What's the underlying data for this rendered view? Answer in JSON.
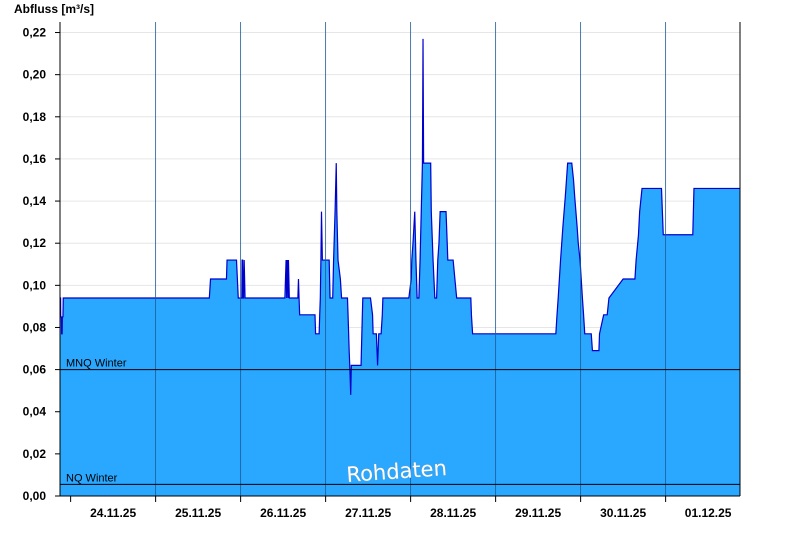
{
  "chart_data": {
    "type": "area",
    "ylabel": "Abfluss [m³/s]",
    "ylim": [
      0,
      0.225
    ],
    "yticks": [
      0.0,
      0.02,
      0.04,
      0.06,
      0.08,
      0.1,
      0.12,
      0.14,
      0.16,
      0.18,
      0.2,
      0.22
    ],
    "ytick_labels": [
      "0,00",
      "0,02",
      "0,04",
      "0,06",
      "0,08",
      "0,10",
      "0,12",
      "0,14",
      "0,16",
      "0,18",
      "0,20",
      "0,22"
    ],
    "xlim": [
      "23.11.25 21:00",
      "01.12.25 21:00"
    ],
    "xtick_labels": [
      "24.11.25",
      "25.11.25",
      "26.11.25",
      "27.11.25",
      "28.11.25",
      "29.11.25",
      "30.11.25",
      "01.12.25"
    ],
    "reference_lines": [
      {
        "label": "MNQ Winter",
        "value": 0.06
      },
      {
        "label": "NQ Winter",
        "value": 0.0055
      }
    ],
    "fill_color": "#2aa7fe",
    "line_color": "#0000cc",
    "grid": "horizontal",
    "watermark": "Rohdaten",
    "series": [
      {
        "x": [
          "23.11.25 21:00",
          "23.11.25 21:10",
          "23.11.25 21:12",
          "23.11.25 21:24",
          "23.11.25 21:27",
          "23.11.25 21:36",
          "23.11.25 21:40",
          "23.11.25 21:50",
          "23.11.25 21:55",
          "23.11.25 22:10",
          "25.11.25 15:10",
          "25.11.25 15:30",
          "25.11.25 20:00",
          "25.11.25 20:10",
          "25.11.25 20:30",
          "25.11.25 20:50",
          "25.11.25 22:50",
          "25.11.25 23:05",
          "25.11.25 23:20",
          "26.11.25 00:20",
          "26.11.25 00:25",
          "26.11.25 00:35",
          "26.11.25 00:40",
          "26.11.25 00:50",
          "26.11.25 01:00",
          "26.11.25 01:15",
          "26.11.25 12:30",
          "26.11.25 12:40",
          "26.11.25 12:50",
          "26.11.25 13:00",
          "26.11.25 13:10",
          "26.11.25 13:25",
          "26.11.25 13:30",
          "26.11.25 13:45",
          "26.11.25 16:10",
          "26.11.25 16:20",
          "26.11.25 16:30",
          "26.11.25 16:40",
          "26.11.25 21:00",
          "26.11.25 21:10",
          "26.11.25 21:30",
          "26.11.25 22:10",
          "26.11.25 22:20",
          "26.11.25 22:30",
          "26.11.25 22:40",
          "26.11.25 22:50",
          "26.11.25 23:05",
          "27.11.25 01:00",
          "27.11.25 01:15",
          "27.11.25 01:45",
          "27.11.25 02:00",
          "27.11.25 02:15",
          "27.11.25 02:40",
          "27.11.25 03:00",
          "27.11.25 03:10",
          "27.11.25 03:30",
          "27.11.25 04:10",
          "27.11.25 04:30",
          "27.11.25 06:00",
          "27.11.25 06:10",
          "27.11.25 06:20",
          "27.11.25 06:30",
          "27.11.25 06:40",
          "27.11.25 06:50",
          "27.11.25 07:05",
          "27.11.25 07:15",
          "27.11.25 10:00",
          "27.11.25 10:10",
          "27.11.25 10:20",
          "27.11.25 10:30",
          "27.11.25 10:40",
          "27.11.25 10:50",
          "27.11.25 11:00",
          "27.11.25 11:10",
          "27.11.25 12:20",
          "27.11.25 12:40",
          "27.11.25 13:15",
          "27.11.25 13:25",
          "27.11.25 14:00",
          "27.11.25 14:20",
          "27.11.25 14:40",
          "27.11.25 15:00",
          "27.11.25 15:15",
          "27.11.25 15:25",
          "27.11.25 15:40",
          "27.11.25 16:00",
          "27.11.25 16:10",
          "27.11.25 16:15",
          "27.11.25 16:20",
          "27.11.25 16:40",
          "27.11.25 17:00",
          "27.11.25 17:30",
          "27.11.25 18:00",
          "27.11.25 19:00",
          "27.11.25 19:20",
          "27.11.25 20:10",
          "27.11.25 20:20",
          "27.11.25 23:10",
          "27.11.25 23:30",
          "28.11.25 00:10",
          "28.11.25 00:20",
          "28.11.25 00:40",
          "28.11.25 01:10",
          "28.11.25 01:30",
          "28.11.25 01:50",
          "28.11.25 02:00",
          "28.11.25 02:10",
          "28.11.25 02:20",
          "28.11.25 02:40",
          "28.11.25 03:00",
          "28.11.25 03:20",
          "28.11.25 03:30",
          "28.11.25 03:40",
          "28.11.25 05:40",
          "28.11.25 05:50",
          "28.11.25 06:20",
          "28.11.25 06:50",
          "28.11.25 07:00",
          "28.11.25 07:20",
          "28.11.25 07:30",
          "28.11.25 07:40",
          "28.11.25 08:00",
          "28.11.25 08:20",
          "28.11.25 08:30",
          "28.11.25 08:40",
          "28.11.25 09:50",
          "28.11.25 10:00",
          "28.11.25 10:20",
          "28.11.25 10:30",
          "28.11.25 11:00",
          "28.11.25 11:20",
          "28.11.25 11:40",
          "28.11.25 12:00",
          "28.11.25 12:30",
          "28.11.25 13:00",
          "28.11.25 13:20",
          "28.11.25 13:30",
          "28.11.25 17:00",
          "28.11.25 17:10",
          "28.11.25 17:30",
          "28.11.25 17:40",
          "28.11.25 18:00",
          "28.11.25 18:20",
          "28.11.25 18:40",
          "28.11.25 19:20",
          "28.11.25 19:30",
          "28.11.25 19:40",
          "28.11.25 22:20",
          "28.11.25 22:40",
          "28.11.25 23:00",
          "28.11.25 23:20",
          "28.11.25 23:40",
          "29.11.25 00:00",
          "29.11.25 00:20",
          "29.11.25 00:40",
          "29.11.25 01:30",
          "29.11.25 10:40",
          "29.11.25 10:50",
          "29.11.25 11:10",
          "29.11.25 11:20",
          "29.11.25 11:40",
          "29.11.25 12:00",
          "29.11.25 12:20",
          "29.11.25 12:40",
          "29.11.25 13:00",
          "29.11.25 13:30",
          "29.11.25 14:00",
          "29.11.25 14:20",
          "29.11.25 14:40",
          "29.11.25 15:00",
          "29.11.25 17:00",
          "29.11.25 17:20",
          "29.11.25 17:40",
          "29.11.25 18:00",
          "29.11.25 18:20",
          "29.11.25 18:40",
          "29.11.25 19:00",
          "29.11.25 19:20",
          "29.11.25 19:40",
          "29.11.25 20:00",
          "29.11.25 20:20",
          "29.11.25 20:40",
          "29.11.25 21:00",
          "29.11.25 21:30",
          "29.11.25 22:00",
          "29.11.25 22:20",
          "29.11.25 22:40",
          "29.11.25 23:00",
          "29.11.25 23:20",
          "29.11.25 23:50",
          "30.11.25 00:10",
          "30.11.25 00:30",
          "30.11.25 00:50",
          "30.11.25 01:10",
          "30.11.25 03:00",
          "30.11.25 03:20",
          "30.11.25 04:00",
          "30.11.25 04:20",
          "30.11.25 05:10",
          "30.11.25 05:20",
          "30.11.25 06:30",
          "30.11.25 06:50",
          "30.11.25 07:30",
          "30.11.25 08:00",
          "30.11.25 12:00",
          "30.11.25 12:20",
          "30.11.25 15:20",
          "30.11.25 15:40",
          "30.11.25 16:20",
          "30.11.25 16:40",
          "30.11.25 17:20",
          "30.11.25 17:40",
          "30.11.25 22:50",
          "30.11.25 23:20",
          "01.12.25 07:40",
          "01.12.25 08:00",
          "01.12.25 21:00"
        ],
        "y": [
          0.094,
          0.094,
          0.085,
          0.085,
          0.077,
          0.077,
          0.085,
          0.085,
          0.094,
          0.094,
          0.094,
          0.103,
          0.103,
          0.112,
          0.112,
          0.112,
          0.112,
          0.103,
          0.094,
          0.094,
          0.112,
          0.112,
          0.094,
          0.094,
          0.112,
          0.094,
          0.094,
          0.103,
          0.112,
          0.094,
          0.112,
          0.094,
          0.112,
          0.094,
          0.094,
          0.103,
          0.094,
          0.086,
          0.086,
          0.077,
          0.077,
          0.077,
          0.086,
          0.094,
          0.112,
          0.135,
          0.112,
          0.112,
          0.094,
          0.094,
          0.094,
          0.112,
          0.135,
          0.158,
          0.135,
          0.112,
          0.103,
          0.094,
          0.094,
          0.094,
          0.086,
          0.077,
          0.068,
          0.061,
          0.048,
          0.062,
          0.062,
          0.073,
          0.084,
          0.094,
          0.094,
          0.094,
          0.094,
          0.094,
          0.094,
          0.094,
          0.086,
          0.077,
          0.077,
          0.077,
          0.062,
          0.077,
          0.077,
          0.077,
          0.077,
          0.086,
          0.094,
          0.094,
          0.094,
          0.094,
          0.094,
          0.094,
          0.094,
          0.094,
          0.094,
          0.094,
          0.094,
          0.094,
          0.094,
          0.103,
          0.112,
          0.12,
          0.135,
          0.112,
          0.094,
          0.094,
          0.094,
          0.094,
          0.112,
          0.135,
          0.158,
          0.217,
          0.158,
          0.158,
          0.135,
          0.112,
          0.094,
          0.094,
          0.094,
          0.103,
          0.112,
          0.12,
          0.135,
          0.135,
          0.135,
          0.135,
          0.135,
          0.12,
          0.112,
          0.112,
          0.112,
          0.112,
          0.112,
          0.103,
          0.094,
          0.094,
          0.094,
          0.094,
          0.086,
          0.077,
          0.077,
          0.077,
          0.077,
          0.077,
          0.077,
          0.077,
          0.077,
          0.077,
          0.077,
          0.077,
          0.077,
          0.077,
          0.077,
          0.077,
          0.077,
          0.077,
          0.077,
          0.077,
          0.077,
          0.077,
          0.077,
          0.077,
          0.077,
          0.077,
          0.077,
          0.077,
          0.077,
          0.077,
          0.077,
          0.077,
          0.077,
          0.086,
          0.094,
          0.103,
          0.112,
          0.12,
          0.128,
          0.135,
          0.142,
          0.15,
          0.158,
          0.158,
          0.158,
          0.158,
          0.15,
          0.142,
          0.135,
          0.128,
          0.12,
          0.112,
          0.103,
          0.094,
          0.086,
          0.077,
          0.077,
          0.069,
          0.069,
          0.069,
          0.069,
          0.077,
          0.086,
          0.086,
          0.086,
          0.094,
          0.103,
          0.103,
          0.103,
          0.112,
          0.124,
          0.135,
          0.146,
          0.146,
          0.146,
          0.124,
          0.124,
          0.146,
          0.146
        ]
      }
    ]
  }
}
